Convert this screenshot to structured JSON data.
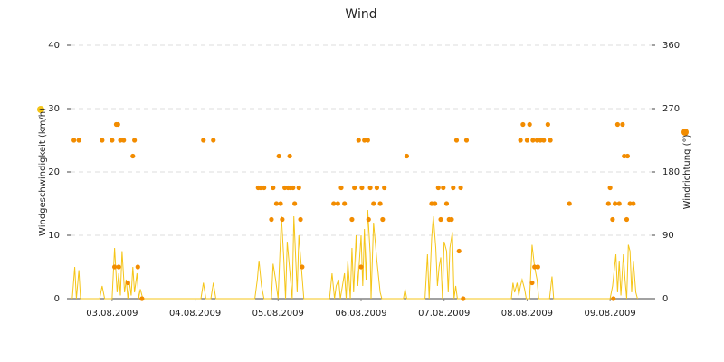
{
  "chart_data": {
    "type": "line-scatter",
    "title": "Wind",
    "y_label": "Windgeschwindigkeit (km/h)",
    "y2_label": "Windrichtung (°)",
    "xlim": [
      3,
      10
    ],
    "xticks": [
      {
        "value": 3.5,
        "label": "03.08.2009"
      },
      {
        "value": 4.5,
        "label": "04.08.2009"
      },
      {
        "value": 5.5,
        "label": "05.08.2009"
      },
      {
        "value": 6.5,
        "label": "06.08.2009"
      },
      {
        "value": 7.5,
        "label": "07.08.2009"
      },
      {
        "value": 8.5,
        "label": "08.08.2009"
      },
      {
        "value": 9.5,
        "label": "09.08.2009"
      }
    ],
    "ylim": [
      0,
      40
    ],
    "yticks": [
      0,
      10,
      20,
      30,
      40
    ],
    "y2lim": [
      0,
      360
    ],
    "y2ticks": [
      0,
      90,
      180,
      270,
      360
    ],
    "grid": true,
    "series": [
      {
        "type": "line",
        "color": "#f5c518",
        "x": [
          3.02,
          3.05,
          3.07,
          3.1,
          3.12,
          3.35,
          3.38,
          3.41,
          3.5,
          3.53,
          3.56,
          3.58,
          3.6,
          3.62,
          3.65,
          3.67,
          3.69,
          3.71,
          3.73,
          3.75,
          3.77,
          3.8,
          3.82,
          3.84,
          3.87,
          4.57,
          4.6,
          4.63,
          4.69,
          4.72,
          4.75,
          5.22,
          5.25,
          5.27,
          5.3,
          5.33,
          5.42,
          5.44,
          5.47,
          5.5,
          5.54,
          5.57,
          5.59,
          5.61,
          5.65,
          5.67,
          5.69,
          5.71,
          5.73,
          5.75,
          5.78,
          5.81,
          6.12,
          6.15,
          6.18,
          6.2,
          6.23,
          6.25,
          6.3,
          6.32,
          6.34,
          6.37,
          6.39,
          6.41,
          6.44,
          6.46,
          6.48,
          6.5,
          6.52,
          6.54,
          6.56,
          6.58,
          6.61,
          6.62,
          6.65,
          6.69,
          6.73,
          6.75,
          7.01,
          7.03,
          7.05,
          7.27,
          7.3,
          7.32,
          7.35,
          7.37,
          7.4,
          7.42,
          7.44,
          7.46,
          7.48,
          7.5,
          7.53,
          7.55,
          7.57,
          7.6,
          7.62,
          7.64,
          7.66,
          8.31,
          8.33,
          8.35,
          8.38,
          8.4,
          8.42,
          8.44,
          8.47,
          8.49,
          8.53,
          8.56,
          8.59,
          8.62,
          8.64,
          8.77,
          8.8,
          8.82,
          9.5,
          9.53,
          9.57,
          9.59,
          9.61,
          9.63,
          9.66,
          9.68,
          9.7,
          9.72,
          9.74,
          9.76,
          9.78,
          9.81,
          9.83
        ],
        "values": [
          0,
          5,
          0,
          4.5,
          0,
          0,
          2,
          0,
          0,
          8,
          1,
          4,
          0.5,
          7.5,
          1,
          3,
          0,
          2.5,
          0.5,
          5,
          1,
          4,
          0,
          1.5,
          0,
          0,
          2.5,
          0,
          0,
          2.5,
          0,
          0,
          3,
          6,
          2,
          0,
          0,
          5.5,
          3,
          0,
          13,
          6,
          0,
          9,
          3,
          0,
          13,
          7,
          1,
          10,
          5,
          0,
          0,
          4,
          0,
          2,
          3,
          0,
          4,
          0,
          6,
          0,
          8,
          1,
          10,
          2,
          6,
          10,
          2,
          11,
          3,
          14,
          7,
          0,
          12,
          6,
          1,
          0,
          0,
          1.5,
          0,
          0,
          7,
          0,
          9.5,
          13,
          8,
          2,
          5,
          6.5,
          0,
          9,
          7.5,
          1,
          8,
          10.5,
          0,
          2,
          0,
          0,
          2.5,
          1,
          2.5,
          0.5,
          2,
          3,
          1.5,
          0,
          0,
          8.5,
          5,
          3,
          0,
          0,
          3.5,
          0,
          0,
          2,
          7,
          1,
          6,
          0.5,
          7,
          3,
          0,
          8.5,
          7.5,
          1,
          6,
          1,
          0
        ]
      },
      {
        "type": "scatter",
        "axis": "y2",
        "color": "#f28c00",
        "x": [
          3.04,
          3.1,
          3.38,
          3.5,
          3.55,
          3.57,
          3.6,
          3.64,
          3.75,
          3.77,
          3.53,
          3.58,
          3.69,
          3.81,
          3.86,
          4.6,
          4.72,
          5.26,
          5.29,
          5.33,
          5.42,
          5.44,
          5.48,
          5.51,
          5.53,
          5.55,
          5.58,
          5.62,
          5.65,
          5.64,
          5.68,
          5.7,
          5.77,
          5.75,
          5.79,
          6.17,
          6.22,
          6.26,
          6.3,
          6.39,
          6.42,
          6.47,
          6.51,
          6.54,
          6.59,
          6.61,
          6.65,
          6.69,
          6.73,
          6.76,
          6.78,
          6.5,
          6.58,
          7.05,
          7.35,
          7.39,
          7.43,
          7.46,
          7.49,
          7.53,
          7.56,
          7.59,
          7.61,
          7.65,
          7.68,
          7.7,
          7.73,
          7.77,
          8.42,
          8.45,
          8.5,
          8.53,
          8.57,
          8.62,
          8.66,
          8.7,
          8.75,
          8.78,
          8.56,
          8.59,
          8.63,
          9.01,
          9.48,
          9.5,
          9.53,
          9.56,
          9.59,
          9.61,
          9.65,
          9.67,
          9.71,
          9.7,
          9.74,
          9.78,
          9.54
        ],
        "values": [
          225,
          225,
          225,
          225,
          247.5,
          247.5,
          225,
          225,
          202.5,
          225,
          45,
          45,
          22.5,
          45,
          0,
          225,
          225,
          157.5,
          157.5,
          157.5,
          112.5,
          157.5,
          135,
          202.5,
          135,
          112.5,
          157.5,
          157.5,
          157.5,
          202.5,
          157.5,
          135,
          112.5,
          157.5,
          45,
          135,
          135,
          157.5,
          135,
          112.5,
          157.5,
          225,
          157.5,
          225,
          112.5,
          157.5,
          135,
          157.5,
          135,
          112.5,
          157.5,
          45,
          225,
          202.5,
          135,
          135,
          157.5,
          112.5,
          157.5,
          135,
          112.5,
          112.5,
          157.5,
          225,
          67.5,
          157.5,
          0,
          225,
          225,
          247.5,
          225,
          247.5,
          225,
          225,
          225,
          225,
          247.5,
          225,
          22.5,
          45,
          45,
          135,
          135,
          157.5,
          112.5,
          135,
          247.5,
          135,
          247.5,
          202.5,
          202.5,
          112.5,
          135,
          135,
          0
        ]
      }
    ]
  }
}
